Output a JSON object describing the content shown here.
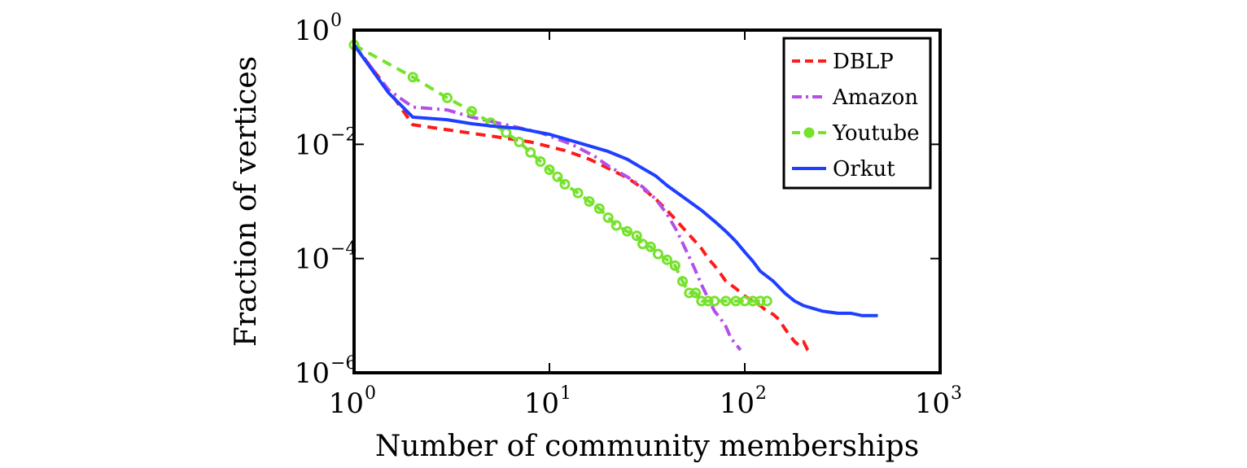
{
  "chart_data": {
    "type": "line",
    "title": "",
    "xlabel": "Number of community memberships",
    "ylabel": "Fraction of vertices",
    "xscale": "log",
    "yscale": "log",
    "xlim": [
      1,
      1000
    ],
    "ylim": [
      1e-06,
      1
    ],
    "x_ticks": [
      {
        "value": 1,
        "base": "10",
        "exp": "0"
      },
      {
        "value": 10,
        "base": "10",
        "exp": "1"
      },
      {
        "value": 100,
        "base": "10",
        "exp": "2"
      },
      {
        "value": 1000,
        "base": "10",
        "exp": "3"
      }
    ],
    "y_ticks": [
      {
        "value": 1,
        "base": "10",
        "exp": "0"
      },
      {
        "value": 0.01,
        "base": "10",
        "exp": "−2"
      },
      {
        "value": 0.0001,
        "base": "10",
        "exp": "−4"
      },
      {
        "value": 1e-06,
        "base": "10",
        "exp": "−6"
      }
    ],
    "legend_position": "top-right",
    "series": [
      {
        "name": "DBLP",
        "color": "#ff1a1a",
        "style": "dashed",
        "x": [
          1,
          1.5,
          2,
          3,
          5,
          8,
          12,
          16,
          20,
          25,
          30,
          35,
          40,
          45,
          50,
          55,
          60,
          65,
          70,
          75,
          80,
          90,
          100,
          110,
          120,
          130,
          140,
          150,
          160,
          170,
          180,
          190,
          200,
          210,
          220
        ],
        "y": [
          0.55,
          0.09,
          0.022,
          0.018,
          0.014,
          0.011,
          0.0078,
          0.0055,
          0.0038,
          0.0026,
          0.0017,
          0.0011,
          0.0007,
          0.00045,
          0.0003,
          0.00021,
          0.00015,
          0.0001,
          7.5e-05,
          5.5e-05,
          4e-05,
          3e-05,
          2.2e-05,
          1.8e-05,
          1.5e-05,
          1.2e-05,
          1.05e-05,
          8.5e-06,
          6e-06,
          4.5e-06,
          3.5e-06,
          3e-06,
          3.5e-06,
          2.5e-06,
          2.3e-06
        ]
      },
      {
        "name": "Amazon",
        "color": "#b44fe8",
        "style": "dashdot",
        "x": [
          1,
          1.5,
          2,
          3,
          4,
          6,
          9,
          13,
          17,
          20,
          25,
          30,
          35,
          40,
          45,
          50,
          55,
          60,
          65,
          70,
          75,
          80,
          85,
          90,
          95
        ],
        "y": [
          0.55,
          0.09,
          0.045,
          0.04,
          0.03,
          0.022,
          0.016,
          0.01,
          0.0062,
          0.0042,
          0.0027,
          0.0018,
          0.0011,
          0.0006,
          0.0003,
          0.00014,
          7e-05,
          3.5e-05,
          2e-05,
          1.2e-05,
          9e-06,
          6.5e-06,
          4e-06,
          3.2e-06,
          2.5e-06
        ]
      },
      {
        "name": "Youtube",
        "color": "#77e22e",
        "style": "dashed-markers",
        "x": [
          1,
          2,
          3,
          4,
          5,
          6,
          7,
          8,
          9,
          10,
          11,
          12,
          14,
          16,
          18,
          20,
          22,
          25,
          28,
          30,
          33,
          36,
          40,
          44,
          48,
          52,
          56,
          60,
          65,
          70,
          80,
          90,
          100,
          110,
          120,
          130
        ],
        "y": [
          0.55,
          0.15,
          0.065,
          0.038,
          0.024,
          0.016,
          0.011,
          0.0072,
          0.005,
          0.0036,
          0.0027,
          0.002,
          0.0014,
          0.001,
          0.00075,
          0.00052,
          0.00038,
          0.0003,
          0.00025,
          0.00018,
          0.00016,
          0.00012,
          9.5e-05,
          7.5e-05,
          4e-05,
          2.5e-05,
          2.5e-05,
          1.8e-05,
          1.8e-05,
          1.8e-05,
          1.8e-05,
          1.8e-05,
          1.8e-05,
          1.8e-05,
          1.8e-05,
          1.8e-05
        ]
      },
      {
        "name": "Orkut",
        "color": "#1f3fff",
        "style": "solid",
        "x": [
          1,
          1.5,
          2,
          3,
          4,
          5,
          7,
          10,
          15,
          20,
          25,
          30,
          35,
          40,
          50,
          60,
          70,
          80,
          90,
          100,
          110,
          120,
          140,
          160,
          180,
          200,
          250,
          300,
          350,
          400,
          480
        ],
        "y": [
          0.55,
          0.08,
          0.03,
          0.027,
          0.023,
          0.021,
          0.019,
          0.015,
          0.01,
          0.0075,
          0.0055,
          0.0038,
          0.0028,
          0.0019,
          0.0011,
          0.0007,
          0.00045,
          0.0003,
          0.0002,
          0.00013,
          9e-05,
          6e-05,
          4e-05,
          2.5e-05,
          1.8e-05,
          1.5e-05,
          1.2e-05,
          1.1e-05,
          1.1e-05,
          1e-05,
          1e-05
        ]
      }
    ]
  }
}
